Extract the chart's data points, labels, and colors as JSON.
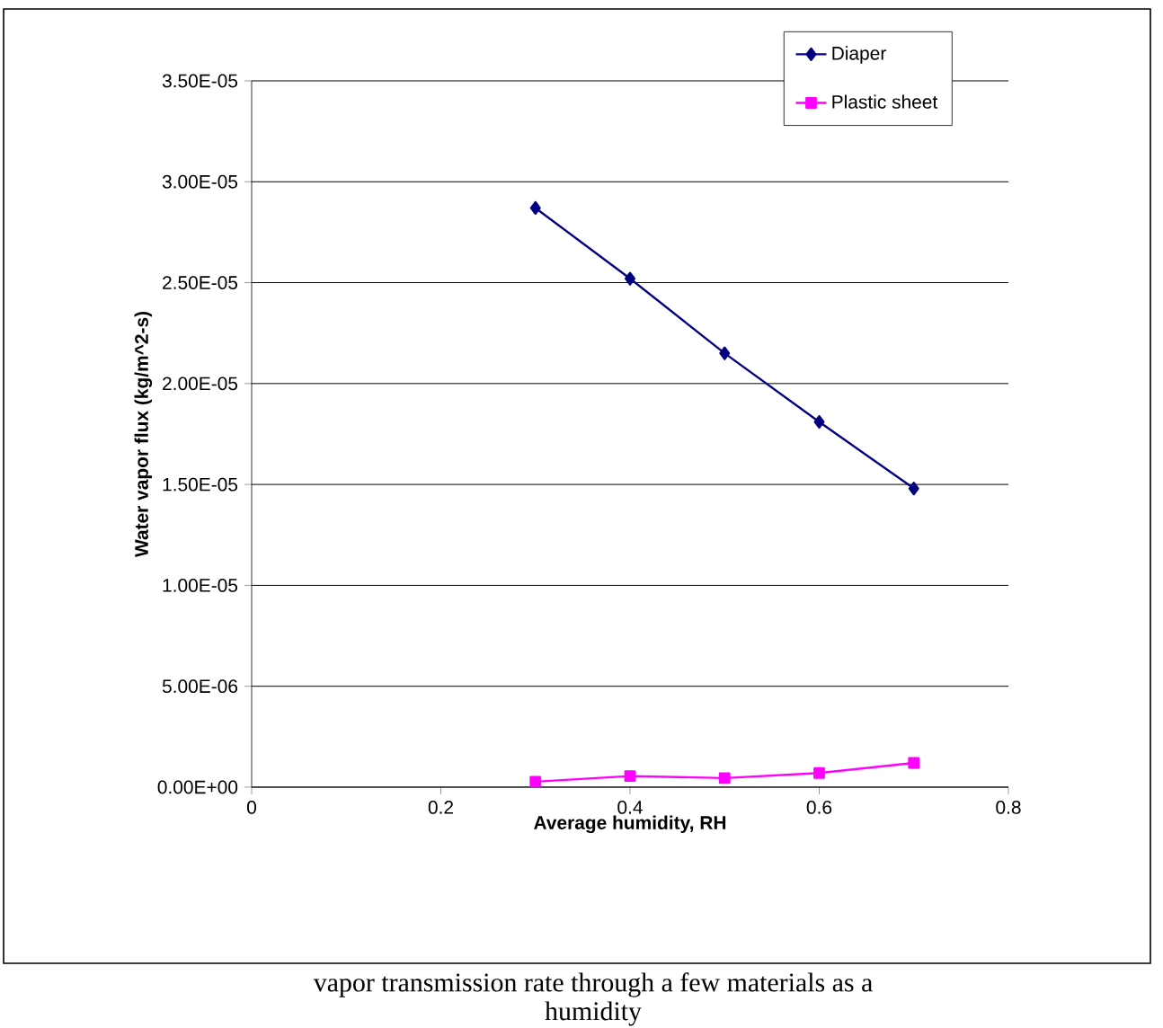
{
  "chart_data": {
    "type": "line",
    "xlabel": "Average humidity, RH",
    "ylabel": "Water vapor flux (kg/m^2-s)",
    "x": [
      0.3,
      0.4,
      0.5,
      0.6,
      0.7
    ],
    "series": [
      {
        "name": "Diaper",
        "color": "#000080",
        "marker": "diamond",
        "values": [
          2.87e-05,
          2.52e-05,
          2.15e-05,
          1.81e-05,
          1.48e-05
        ]
      },
      {
        "name": "Plastic sheet",
        "color": "#ff00ff",
        "marker": "square",
        "values": [
          2.7e-07,
          5.5e-07,
          4.5e-07,
          7e-07,
          1.2e-06
        ]
      }
    ],
    "xlim": [
      0,
      0.8
    ],
    "xticks": [
      0,
      0.2,
      0.4,
      0.6,
      0.8
    ],
    "ylim": [
      0,
      3.5e-05
    ],
    "yticks": [
      {
        "value": 0,
        "label": "0.00E+00"
      },
      {
        "value": 5e-06,
        "label": "5.00E-06"
      },
      {
        "value": 1e-05,
        "label": "1.00E-05"
      },
      {
        "value": 1.5e-05,
        "label": "1.50E-05"
      },
      {
        "value": 2e-05,
        "label": "2.00E-05"
      },
      {
        "value": 2.5e-05,
        "label": "2.50E-05"
      },
      {
        "value": 3e-05,
        "label": "3.00E-05"
      },
      {
        "value": 3.5e-05,
        "label": "3.50E-05"
      }
    ],
    "grid": "y",
    "legend": "top right",
    "line_style": "solid",
    "annotations": [
      "vapor transmission rate through a few materials as a",
      "humidity"
    ]
  }
}
